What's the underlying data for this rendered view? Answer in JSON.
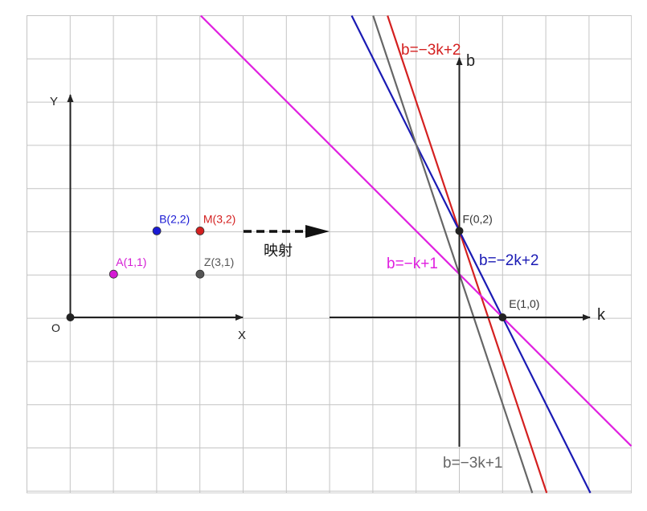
{
  "left_plot": {
    "axis_labels": {
      "y": "Y",
      "x": "X",
      "origin": "O"
    },
    "points": [
      {
        "id": "A",
        "label": "A(1,1)",
        "x": 1,
        "y": 1,
        "color": "#d41bd4"
      },
      {
        "id": "B",
        "label": "B(2,2)",
        "x": 2,
        "y": 2,
        "color": "#1a1ad4"
      },
      {
        "id": "M",
        "label": "M(3,2)",
        "x": 3,
        "y": 2,
        "color": "#d42020"
      },
      {
        "id": "Z",
        "label": "Z(3,1)",
        "x": 3,
        "y": 1,
        "color": "#555555"
      }
    ]
  },
  "mapping": {
    "label": "映射"
  },
  "right_plot": {
    "axis_labels": {
      "k": "k",
      "b": "b"
    },
    "points": [
      {
        "id": "F",
        "label": "F(0,2)",
        "k": 0,
        "b": 2
      },
      {
        "id": "E",
        "label": "E(1,0)",
        "k": 1,
        "b": 0
      }
    ],
    "lines": [
      {
        "id": "line-m",
        "label": "b=−3k+2",
        "slope": -3,
        "intercept": 2,
        "color": "#d42020"
      },
      {
        "id": "line-b",
        "label": "b=−2k+2",
        "slope": -2,
        "intercept": 2,
        "color": "#1a1ab4"
      },
      {
        "id": "line-a",
        "label": "b=−k+1",
        "slope": -1,
        "intercept": 1,
        "color": "#e020e0"
      },
      {
        "id": "line-z",
        "label": "b=−3k+1",
        "slope": -3,
        "intercept": 1,
        "color": "#666666"
      }
    ]
  }
}
